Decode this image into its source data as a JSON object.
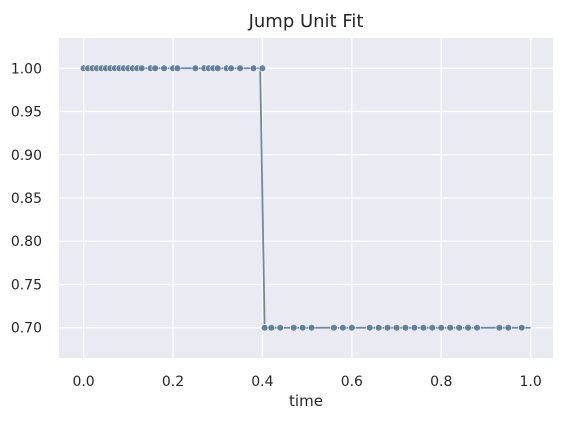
{
  "chart_data": {
    "type": "line",
    "title": "Jump Unit Fit",
    "xlabel": "time",
    "ylabel": "",
    "xlim": [
      -0.055,
      1.05
    ],
    "ylim": [
      0.665,
      1.035
    ],
    "xticks": [
      0.0,
      0.2,
      0.4,
      0.6,
      0.8,
      1.0
    ],
    "xtick_labels": [
      "0.0",
      "0.2",
      "0.4",
      "0.6",
      "0.8",
      "1.0"
    ],
    "yticks": [
      0.7,
      0.75,
      0.8,
      0.85,
      0.9,
      0.95,
      1.0
    ],
    "ytick_labels": [
      "0.70",
      "0.75",
      "0.80",
      "0.85",
      "0.90",
      "0.95",
      "1.00"
    ],
    "grid": true,
    "line": {
      "x": [
        0.0,
        0.395,
        0.405,
        1.0
      ],
      "y": [
        1.0,
        1.0,
        0.7,
        0.7
      ]
    },
    "series": [
      {
        "color": "#5b7a99",
        "x": [
          0.0,
          0.01,
          0.02,
          0.03,
          0.04,
          0.05,
          0.06,
          0.07,
          0.08,
          0.09,
          0.1,
          0.11,
          0.12,
          0.13,
          0.15,
          0.16,
          0.18,
          0.2,
          0.21,
          0.25,
          0.27,
          0.28,
          0.29,
          0.3,
          0.32,
          0.33,
          0.35,
          0.38,
          0.4,
          0.405,
          0.42,
          0.44,
          0.47,
          0.49,
          0.51,
          0.56,
          0.58,
          0.6,
          0.64,
          0.66,
          0.68,
          0.7,
          0.72,
          0.74,
          0.76,
          0.78,
          0.8,
          0.82,
          0.84,
          0.86,
          0.88,
          0.93,
          0.95,
          0.98
        ],
        "y": [
          1.0,
          1.0,
          1.0,
          1.0,
          1.0,
          1.0,
          1.0,
          1.0,
          1.0,
          1.0,
          1.0,
          1.0,
          1.0,
          1.0,
          1.0,
          1.0,
          1.0,
          1.0,
          1.0,
          1.0,
          1.0,
          1.0,
          1.0,
          1.0,
          1.0,
          1.0,
          1.0,
          1.0,
          1.0,
          0.7,
          0.7,
          0.7,
          0.7,
          0.7,
          0.7,
          0.7,
          0.7,
          0.7,
          0.7,
          0.7,
          0.7,
          0.7,
          0.7,
          0.7,
          0.7,
          0.7,
          0.7,
          0.7,
          0.7,
          0.7,
          0.7,
          0.7,
          0.7,
          0.7
        ]
      }
    ],
    "line_color": "#6c8aa5",
    "plot_bg": "#eaeaf2"
  }
}
